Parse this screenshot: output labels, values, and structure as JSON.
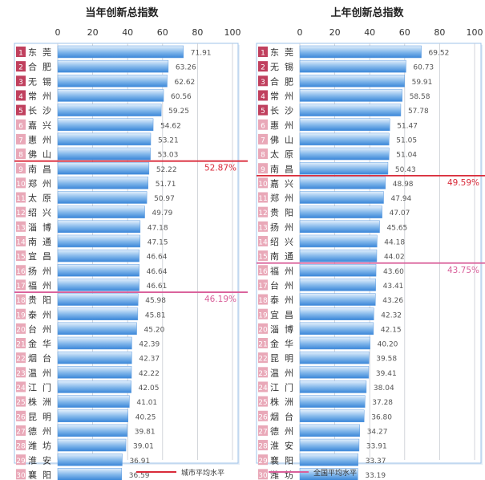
{
  "chart_data": [
    {
      "type": "bar",
      "title": "当年创新总指数",
      "xlim": [
        0,
        100
      ],
      "xticks": [
        0,
        20,
        40,
        60,
        80,
        100
      ],
      "ranks": [
        1,
        2,
        3,
        4,
        5,
        6,
        7,
        8,
        9,
        10,
        11,
        12,
        13,
        14,
        15,
        16,
        17,
        18,
        19,
        20,
        21,
        22,
        23,
        24,
        25,
        26,
        27,
        28,
        29,
        30
      ],
      "categories": [
        "东莞",
        "合肥",
        "无锡",
        "常州",
        "长沙",
        "嘉兴",
        "惠州",
        "佛山",
        "南昌",
        "郑州",
        "太原",
        "绍兴",
        "淄博",
        "南通",
        "宜昌",
        "扬州",
        "福州",
        "贵阳",
        "泰州",
        "台州",
        "金华",
        "烟台",
        "温州",
        "江门",
        "株洲",
        "昆明",
        "德州",
        "潍坊",
        "淮安",
        "襄阳"
      ],
      "values": [
        71.91,
        63.26,
        62.62,
        60.56,
        59.25,
        54.62,
        53.21,
        53.03,
        52.22,
        51.71,
        50.97,
        49.79,
        47.18,
        47.15,
        46.64,
        46.64,
        46.61,
        45.98,
        45.81,
        45.2,
        42.39,
        42.37,
        42.22,
        42.05,
        41.01,
        40.25,
        39.81,
        39.01,
        36.91,
        36.59
      ],
      "value_labels": [
        "71.91",
        "63.26",
        "62.62",
        "60.56",
        "59.25",
        "54.62",
        "53.21",
        "53.03",
        "52.22",
        "51.71",
        "50.97",
        "49.79",
        "47.18",
        "47.15",
        "46.64",
        "46.64",
        "46.61",
        "45.98",
        "45.81",
        "45.20",
        "42.39",
        "42.37",
        "42.22",
        "42.05",
        "41.01",
        "40.25",
        "39.81",
        "39.01",
        "36.91",
        "36.59"
      ],
      "reference_lines": [
        {
          "name": "城市平均水平",
          "after_rank": 8,
          "label": "52.87%",
          "color": "#d92b3a"
        },
        {
          "name": "全国平均水平",
          "after_rank": 17,
          "label": "46.19%",
          "color": "#d95f9a"
        }
      ]
    },
    {
      "type": "bar",
      "title": "上年创新总指数",
      "xlim": [
        0,
        100
      ],
      "xticks": [
        0,
        20,
        40,
        60,
        80,
        100
      ],
      "ranks": [
        1,
        2,
        3,
        4,
        5,
        6,
        7,
        8,
        9,
        10,
        11,
        12,
        13,
        14,
        15,
        16,
        17,
        18,
        19,
        20,
        21,
        22,
        23,
        24,
        25,
        26,
        27,
        28,
        29,
        30
      ],
      "categories": [
        "东莞",
        "无锡",
        "合肥",
        "常州",
        "长沙",
        "惠州",
        "佛山",
        "太原",
        "南昌",
        "嘉兴",
        "郑州",
        "贵阳",
        "扬州",
        "绍兴",
        "南通",
        "福州",
        "台州",
        "泰州",
        "宜昌",
        "淄博",
        "金华",
        "昆明",
        "温州",
        "江门",
        "株洲",
        "烟台",
        "德州",
        "淮安",
        "襄阳",
        "潍坊"
      ],
      "values": [
        69.52,
        60.73,
        59.91,
        58.58,
        57.78,
        51.47,
        51.05,
        51.04,
        50.43,
        48.98,
        47.94,
        47.07,
        45.65,
        44.18,
        44.02,
        43.6,
        43.41,
        43.26,
        42.32,
        42.15,
        40.2,
        39.58,
        39.41,
        38.04,
        37.28,
        36.8,
        34.27,
        33.91,
        33.37,
        33.19
      ],
      "value_labels": [
        "69.52",
        "60.73",
        "59.91",
        "58.58",
        "57.78",
        "51.47",
        "51.05",
        "51.04",
        "50.43",
        "48.98",
        "47.94",
        "47.07",
        "45.65",
        "44.18",
        "44.02",
        "43.60",
        "43.41",
        "43.26",
        "42.32",
        "42.15",
        "40.20",
        "39.58",
        "39.41",
        "38.04",
        "37.28",
        "36.80",
        "34.27",
        "33.91",
        "33.37",
        "33.19"
      ],
      "reference_lines": [
        {
          "name": "城市平均水平",
          "after_rank": 9,
          "label": "49.59%",
          "color": "#d92b3a"
        },
        {
          "name": "全国平均水平",
          "after_rank": 15,
          "label": "43.75%",
          "color": "#d95f9a"
        }
      ]
    }
  ],
  "legend": [
    {
      "label": "城市平均水平",
      "color": "#d92b3a"
    },
    {
      "label": "全国平均水平",
      "color": "#d95f9a"
    }
  ],
  "colors": {
    "bar_dark": "#3a86d8",
    "bar_light": "#d6e8fa",
    "rank_dark": "#c0405e",
    "rank_light": "#e9a8b8",
    "panel_border": "#9fc3e8",
    "gridline": "#c8ccd2",
    "value_text": "#555555",
    "label_text": "#333333"
  }
}
